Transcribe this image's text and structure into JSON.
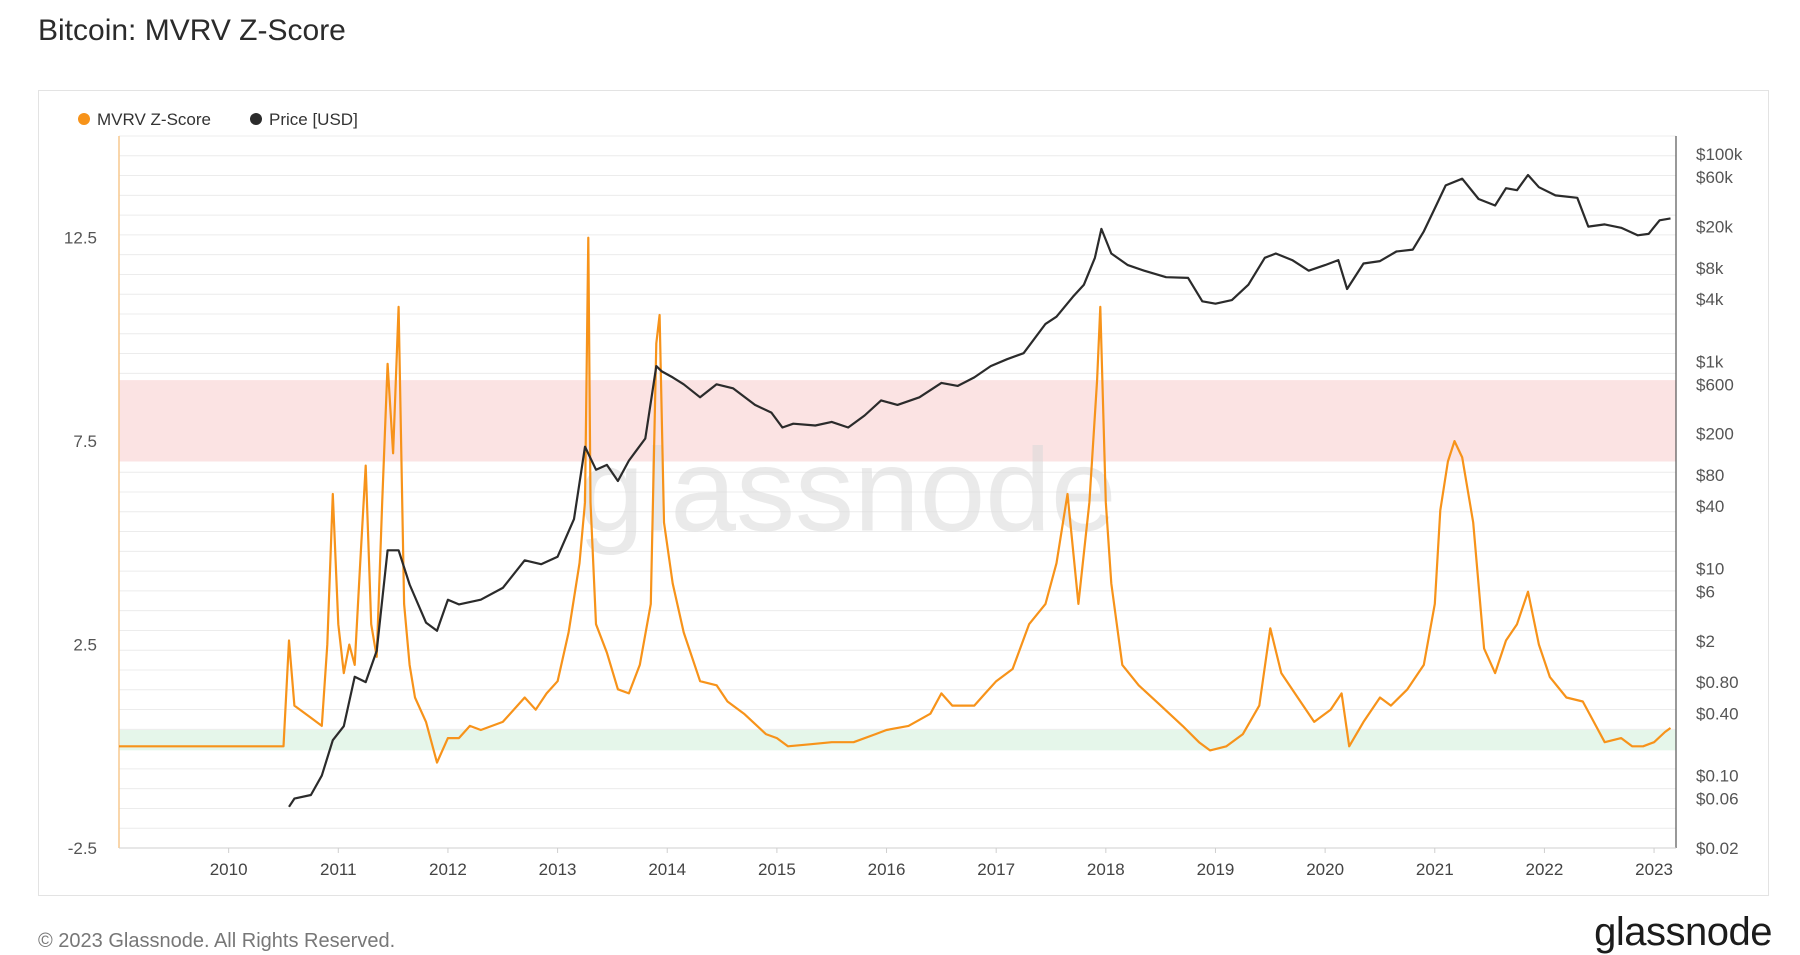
{
  "page": {
    "title": "Bitcoin: MVRV Z-Score"
  },
  "footer": {
    "copyright": "© 2023 Glassnode. All Rights Reserved.",
    "logo": "glassnode"
  },
  "watermark": "glassnode",
  "colors": {
    "zscore": "#f7931a",
    "price": "#2b2b2b",
    "red_band": "#fbe3e3",
    "green_band": "#e5f6ea",
    "grid": "#ececec"
  },
  "chart_data": {
    "type": "line",
    "legend": {
      "placement": "top-left",
      "entries": [
        {
          "label": "MVRV Z-Score",
          "color": "#f7931a"
        },
        {
          "label": "Price [USD]",
          "color": "#2b2b2b"
        }
      ]
    },
    "x_axis": {
      "ticks": [
        "2010",
        "2011",
        "2012",
        "2013",
        "2014",
        "2015",
        "2016",
        "2017",
        "2018",
        "2019",
        "2020",
        "2021",
        "2022",
        "2023"
      ],
      "range": [
        2009.0,
        2023.2
      ]
    },
    "y_left": {
      "ticks": [
        "12.5",
        "7.5",
        "2.5",
        "-2.5"
      ],
      "range": [
        -2.5,
        15.0
      ]
    },
    "y_right": {
      "scale": "log",
      "ticks": [
        "$100k",
        "$60k",
        "$20k",
        "$8k",
        "$4k",
        "$1k",
        "$600",
        "$200",
        "$80",
        "$40",
        "$10",
        "$6",
        "$2",
        "$0.80",
        "$0.40",
        "$0.10",
        "$0.06",
        "$0.02"
      ],
      "range": [
        0.02,
        150000
      ]
    },
    "bands": [
      {
        "name": "red",
        "from": 7.0,
        "to": 9.0
      },
      {
        "name": "green",
        "from": -0.1,
        "to": 0.4
      }
    ],
    "series": [
      {
        "name": "MVRV Z-Score",
        "axis": "left",
        "points": [
          [
            2009.0,
            0.0
          ],
          [
            2010.5,
            0.0
          ],
          [
            2010.55,
            2.6
          ],
          [
            2010.6,
            1.0
          ],
          [
            2010.75,
            0.7
          ],
          [
            2010.85,
            0.5
          ],
          [
            2010.9,
            2.5
          ],
          [
            2010.95,
            6.2
          ],
          [
            2011.0,
            3.0
          ],
          [
            2011.05,
            1.8
          ],
          [
            2011.1,
            2.5
          ],
          [
            2011.15,
            2.0
          ],
          [
            2011.2,
            4.5
          ],
          [
            2011.25,
            6.9
          ],
          [
            2011.3,
            3.0
          ],
          [
            2011.35,
            2.2
          ],
          [
            2011.4,
            6.0
          ],
          [
            2011.45,
            9.4
          ],
          [
            2011.5,
            7.2
          ],
          [
            2011.55,
            10.8
          ],
          [
            2011.6,
            3.5
          ],
          [
            2011.65,
            2.0
          ],
          [
            2011.7,
            1.2
          ],
          [
            2011.8,
            0.6
          ],
          [
            2011.9,
            -0.4
          ],
          [
            2012.0,
            0.2
          ],
          [
            2012.1,
            0.2
          ],
          [
            2012.2,
            0.5
          ],
          [
            2012.3,
            0.4
          ],
          [
            2012.5,
            0.6
          ],
          [
            2012.7,
            1.2
          ],
          [
            2012.8,
            0.9
          ],
          [
            2012.9,
            1.3
          ],
          [
            2013.0,
            1.6
          ],
          [
            2013.1,
            2.8
          ],
          [
            2013.2,
            4.5
          ],
          [
            2013.25,
            6.0
          ],
          [
            2013.28,
            12.5
          ],
          [
            2013.3,
            6.0
          ],
          [
            2013.35,
            3.0
          ],
          [
            2013.45,
            2.3
          ],
          [
            2013.55,
            1.4
          ],
          [
            2013.65,
            1.3
          ],
          [
            2013.75,
            2.0
          ],
          [
            2013.85,
            3.5
          ],
          [
            2013.9,
            9.9
          ],
          [
            2013.93,
            10.6
          ],
          [
            2013.97,
            5.5
          ],
          [
            2014.05,
            4.0
          ],
          [
            2014.15,
            2.8
          ],
          [
            2014.3,
            1.6
          ],
          [
            2014.45,
            1.5
          ],
          [
            2014.55,
            1.1
          ],
          [
            2014.7,
            0.8
          ],
          [
            2014.9,
            0.3
          ],
          [
            2015.0,
            0.2
          ],
          [
            2015.1,
            0.0
          ],
          [
            2015.3,
            0.05
          ],
          [
            2015.5,
            0.1
          ],
          [
            2015.7,
            0.1
          ],
          [
            2015.9,
            0.3
          ],
          [
            2016.0,
            0.4
          ],
          [
            2016.2,
            0.5
          ],
          [
            2016.4,
            0.8
          ],
          [
            2016.5,
            1.3
          ],
          [
            2016.6,
            1.0
          ],
          [
            2016.8,
            1.0
          ],
          [
            2016.9,
            1.3
          ],
          [
            2017.0,
            1.6
          ],
          [
            2017.15,
            1.9
          ],
          [
            2017.3,
            3.0
          ],
          [
            2017.45,
            3.5
          ],
          [
            2017.55,
            4.5
          ],
          [
            2017.65,
            6.2
          ],
          [
            2017.75,
            3.5
          ],
          [
            2017.85,
            6.0
          ],
          [
            2017.92,
            9.0
          ],
          [
            2017.95,
            10.8
          ],
          [
            2018.0,
            6.0
          ],
          [
            2018.05,
            4.0
          ],
          [
            2018.15,
            2.0
          ],
          [
            2018.3,
            1.5
          ],
          [
            2018.5,
            1.0
          ],
          [
            2018.7,
            0.5
          ],
          [
            2018.85,
            0.1
          ],
          [
            2018.95,
            -0.1
          ],
          [
            2019.1,
            0.0
          ],
          [
            2019.25,
            0.3
          ],
          [
            2019.4,
            1.0
          ],
          [
            2019.5,
            2.9
          ],
          [
            2019.6,
            1.8
          ],
          [
            2019.75,
            1.2
          ],
          [
            2019.9,
            0.6
          ],
          [
            2020.05,
            0.9
          ],
          [
            2020.15,
            1.3
          ],
          [
            2020.22,
            0.0
          ],
          [
            2020.35,
            0.6
          ],
          [
            2020.5,
            1.2
          ],
          [
            2020.6,
            1.0
          ],
          [
            2020.75,
            1.4
          ],
          [
            2020.9,
            2.0
          ],
          [
            2021.0,
            3.5
          ],
          [
            2021.05,
            5.8
          ],
          [
            2021.12,
            7.0
          ],
          [
            2021.18,
            7.5
          ],
          [
            2021.25,
            7.1
          ],
          [
            2021.35,
            5.5
          ],
          [
            2021.45,
            2.4
          ],
          [
            2021.55,
            1.8
          ],
          [
            2021.65,
            2.6
          ],
          [
            2021.75,
            3.0
          ],
          [
            2021.85,
            3.8
          ],
          [
            2021.95,
            2.5
          ],
          [
            2022.05,
            1.7
          ],
          [
            2022.2,
            1.2
          ],
          [
            2022.35,
            1.1
          ],
          [
            2022.45,
            0.6
          ],
          [
            2022.55,
            0.1
          ],
          [
            2022.7,
            0.2
          ],
          [
            2022.8,
            0.0
          ],
          [
            2022.9,
            0.0
          ],
          [
            2023.0,
            0.1
          ],
          [
            2023.1,
            0.35
          ],
          [
            2023.15,
            0.45
          ]
        ]
      },
      {
        "name": "Price [USD]",
        "axis": "right",
        "points": [
          [
            2010.55,
            0.05
          ],
          [
            2010.6,
            0.06
          ],
          [
            2010.75,
            0.065
          ],
          [
            2010.85,
            0.1
          ],
          [
            2010.95,
            0.22
          ],
          [
            2011.05,
            0.3
          ],
          [
            2011.15,
            0.9
          ],
          [
            2011.25,
            0.8
          ],
          [
            2011.35,
            1.6
          ],
          [
            2011.45,
            15.0
          ],
          [
            2011.55,
            15.0
          ],
          [
            2011.65,
            7.0
          ],
          [
            2011.8,
            3.0
          ],
          [
            2011.9,
            2.5
          ],
          [
            2012.0,
            5.0
          ],
          [
            2012.1,
            4.5
          ],
          [
            2012.3,
            5.0
          ],
          [
            2012.5,
            6.5
          ],
          [
            2012.7,
            12.0
          ],
          [
            2012.85,
            11.0
          ],
          [
            2013.0,
            13.0
          ],
          [
            2013.15,
            30.0
          ],
          [
            2013.25,
            150.0
          ],
          [
            2013.35,
            90.0
          ],
          [
            2013.45,
            100.0
          ],
          [
            2013.55,
            70.0
          ],
          [
            2013.65,
            110.0
          ],
          [
            2013.8,
            180.0
          ],
          [
            2013.9,
            900.0
          ],
          [
            2013.95,
            800.0
          ],
          [
            2014.05,
            700.0
          ],
          [
            2014.15,
            600.0
          ],
          [
            2014.3,
            450.0
          ],
          [
            2014.45,
            600.0
          ],
          [
            2014.6,
            550.0
          ],
          [
            2014.8,
            380.0
          ],
          [
            2014.95,
            320.0
          ],
          [
            2015.05,
            230.0
          ],
          [
            2015.15,
            250.0
          ],
          [
            2015.35,
            240.0
          ],
          [
            2015.5,
            260.0
          ],
          [
            2015.65,
            230.0
          ],
          [
            2015.8,
            300.0
          ],
          [
            2015.95,
            420.0
          ],
          [
            2016.1,
            380.0
          ],
          [
            2016.3,
            450.0
          ],
          [
            2016.5,
            620.0
          ],
          [
            2016.65,
            580.0
          ],
          [
            2016.8,
            700.0
          ],
          [
            2016.95,
            900.0
          ],
          [
            2017.1,
            1050.0
          ],
          [
            2017.25,
            1200.0
          ],
          [
            2017.45,
            2300.0
          ],
          [
            2017.55,
            2700.0
          ],
          [
            2017.7,
            4200.0
          ],
          [
            2017.8,
            5500.0
          ],
          [
            2017.9,
            10000.0
          ],
          [
            2017.96,
            19000.0
          ],
          [
            2018.05,
            11000.0
          ],
          [
            2018.2,
            8500.0
          ],
          [
            2018.35,
            7500.0
          ],
          [
            2018.55,
            6500.0
          ],
          [
            2018.75,
            6400.0
          ],
          [
            2018.88,
            3800.0
          ],
          [
            2019.0,
            3600.0
          ],
          [
            2019.15,
            3900.0
          ],
          [
            2019.3,
            5500.0
          ],
          [
            2019.45,
            10000.0
          ],
          [
            2019.55,
            11000.0
          ],
          [
            2019.7,
            9500.0
          ],
          [
            2019.85,
            7500.0
          ],
          [
            2020.0,
            8500.0
          ],
          [
            2020.12,
            9500.0
          ],
          [
            2020.2,
            5000.0
          ],
          [
            2020.35,
            8800.0
          ],
          [
            2020.5,
            9300.0
          ],
          [
            2020.65,
            11500.0
          ],
          [
            2020.8,
            12000.0
          ],
          [
            2020.9,
            18000.0
          ],
          [
            2021.0,
            30000.0
          ],
          [
            2021.1,
            50000.0
          ],
          [
            2021.25,
            58000.0
          ],
          [
            2021.4,
            37000.0
          ],
          [
            2021.55,
            32000.0
          ],
          [
            2021.65,
            47000.0
          ],
          [
            2021.75,
            45000.0
          ],
          [
            2021.85,
            63000.0
          ],
          [
            2021.95,
            48000.0
          ],
          [
            2022.1,
            40000.0
          ],
          [
            2022.3,
            38000.0
          ],
          [
            2022.4,
            20000.0
          ],
          [
            2022.55,
            21000.0
          ],
          [
            2022.7,
            19500.0
          ],
          [
            2022.85,
            16500.0
          ],
          [
            2022.95,
            17000.0
          ],
          [
            2023.05,
            23000.0
          ],
          [
            2023.15,
            24000.0
          ]
        ]
      }
    ]
  }
}
